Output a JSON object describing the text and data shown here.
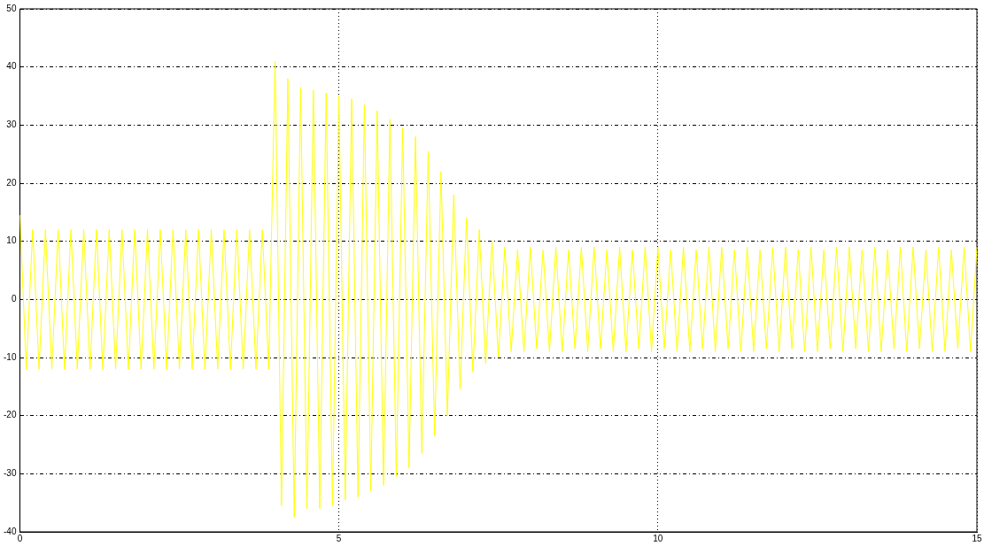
{
  "chart_data": {
    "type": "line",
    "x": [
      0,
      0.1,
      0.2,
      0.3,
      0.4,
      0.5,
      0.6,
      0.7,
      0.8,
      0.9,
      1,
      1.1,
      1.2,
      1.3,
      1.4,
      1.5,
      1.6,
      1.7,
      1.8,
      1.9,
      2,
      2.1,
      2.2,
      2.3,
      2.4,
      2.5,
      2.6,
      2.7,
      2.8,
      2.9,
      3,
      3.1,
      3.2,
      3.3,
      3.4,
      3.5,
      3.6,
      3.7,
      3.8,
      3.9,
      4,
      4.1,
      4.2,
      4.3,
      4.4,
      4.5,
      4.6,
      4.7,
      4.8,
      4.9,
      5,
      5.1,
      5.2,
      5.3,
      5.4,
      5.5,
      5.6,
      5.7,
      5.8,
      5.9,
      6,
      6.1,
      6.2,
      6.3,
      6.4,
      6.5,
      6.6,
      6.7,
      6.8,
      6.9,
      7,
      7.1,
      7.2,
      7.3,
      7.4,
      7.5,
      7.6,
      7.7,
      7.8,
      7.9,
      8,
      8.1,
      8.2,
      8.3,
      8.4,
      8.5,
      8.6,
      8.7,
      8.8,
      8.9,
      9,
      9.1,
      9.2,
      9.3,
      9.4,
      9.5,
      9.6,
      9.7,
      9.8,
      9.9,
      10,
      10.1,
      10.2,
      10.3,
      10.4,
      10.5,
      10.6,
      10.7,
      10.8,
      10.9,
      11,
      11.1,
      11.2,
      11.3,
      11.4,
      11.5,
      11.6,
      11.7,
      11.8,
      11.9,
      12,
      12.1,
      12.2,
      12.3,
      12.4,
      12.5,
      12.6,
      12.7,
      12.8,
      12.9,
      13,
      13.1,
      13.2,
      13.3,
      13.4,
      13.5,
      13.6,
      13.7,
      13.8,
      13.9,
      14,
      14.1,
      14.2,
      14.3,
      14.4,
      14.5,
      14.6,
      14.7,
      14.8,
      14.9,
      15
    ],
    "series": [
      {
        "color": "#ffff00",
        "values": [
          14.5,
          -12,
          12,
          -12,
          12,
          -12,
          12,
          -12,
          12,
          -12,
          12,
          -12,
          12,
          -12,
          12,
          -12,
          12,
          -12,
          12,
          -12,
          12,
          -12,
          12,
          -12,
          12,
          -12,
          12,
          -12,
          12,
          -12,
          12,
          -12,
          12,
          -12,
          12,
          -12,
          12,
          -12,
          12,
          -12,
          41,
          -35.5,
          38,
          -37.5,
          36.5,
          -36,
          36,
          -36,
          35.5,
          -35.5,
          35,
          -34.5,
          34.5,
          -34,
          33.5,
          -33,
          32.5,
          -32,
          31,
          -30.5,
          29.5,
          -29,
          28,
          -26.5,
          25.5,
          -23.5,
          22,
          -20,
          18,
          -15.5,
          14,
          -12.5,
          12,
          -11,
          10,
          -10,
          9,
          -9,
          8.5,
          -9,
          9,
          -8.5,
          8.5,
          -9,
          9,
          -9,
          8.5,
          -8.5,
          9,
          -9,
          9,
          -8.5,
          8.5,
          -9,
          9,
          -9,
          8.5,
          -8.5,
          9,
          -9,
          9,
          -8.5,
          8.5,
          -9,
          9,
          -9,
          8.5,
          -8.5,
          9,
          -9,
          9,
          -8.5,
          8.5,
          -9,
          9,
          -9,
          8.5,
          -8.5,
          9,
          -9,
          9,
          -8.5,
          8.5,
          -9,
          9,
          -9,
          8.5,
          -8.5,
          9,
          -9,
          9,
          -8.5,
          8.5,
          -9,
          9,
          -9,
          8.5,
          -8.5,
          9,
          -9,
          9,
          -8.5,
          8.5,
          -9,
          9,
          -9,
          8.5,
          -8.5,
          9,
          -9,
          9
        ]
      }
    ],
    "xlim": [
      0,
      15
    ],
    "xticks": [
      0,
      5,
      10,
      15
    ],
    "ylim": [
      -40,
      50
    ],
    "yticks": [
      -40,
      -30,
      -20,
      -10,
      0,
      10,
      20,
      30,
      40,
      50
    ],
    "grid": true,
    "legend": false,
    "marker": "none",
    "line_style": "solid"
  }
}
